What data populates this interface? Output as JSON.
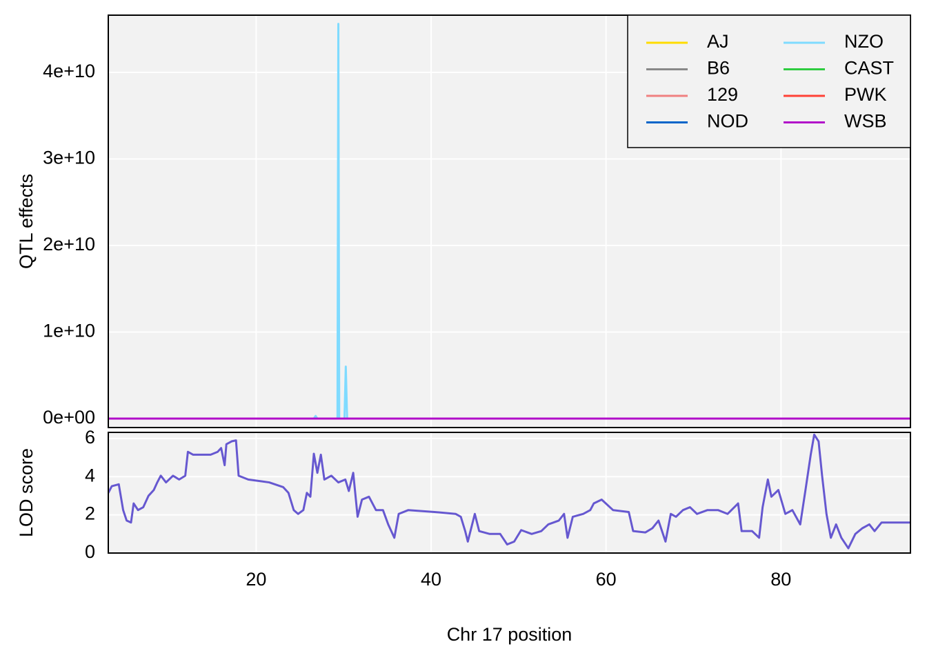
{
  "chart_data": [
    {
      "type": "line",
      "ylabel": "QTL effects",
      "x": [
        3.1,
        26.6,
        26.8,
        27.0,
        29.3,
        29.4,
        29.5,
        29.6,
        30.1,
        30.25,
        30.4,
        94.8
      ],
      "series": [
        {
          "name": "AJ",
          "color": "#FFDC00",
          "values": [
            0,
            0,
            0,
            0,
            0,
            0,
            0,
            0,
            0,
            0,
            0,
            0
          ]
        },
        {
          "name": "B6",
          "color": "#888888",
          "values": [
            0,
            0,
            0,
            0,
            0,
            0,
            0,
            0,
            0,
            0,
            0,
            0
          ]
        },
        {
          "name": "129",
          "color": "#F08080",
          "values": [
            0,
            0,
            0,
            0,
            0,
            0,
            0,
            0,
            0,
            0,
            0,
            0
          ]
        },
        {
          "name": "NOD",
          "color": "#0064C9",
          "values": [
            0,
            0,
            0,
            0,
            0,
            0,
            0,
            0,
            0,
            0,
            0,
            0
          ]
        },
        {
          "name": "NZO",
          "color": "#7FDBFF",
          "values": [
            0,
            0,
            300000000,
            0,
            0,
            45600000000,
            0,
            0,
            0,
            6000000000,
            0,
            0
          ]
        },
        {
          "name": "CAST",
          "color": "#2ECC40",
          "values": [
            0,
            0,
            0,
            0,
            0,
            0,
            0,
            0,
            0,
            0,
            0,
            0
          ]
        },
        {
          "name": "PWK",
          "color": "#FF4136",
          "values": [
            0,
            0,
            0,
            0,
            0,
            0,
            0,
            0,
            0,
            0,
            0,
            0
          ]
        },
        {
          "name": "WSB",
          "color": "#B10DC9",
          "values": [
            0,
            0,
            0,
            0,
            0,
            0,
            0,
            0,
            0,
            0,
            0,
            0
          ]
        }
      ],
      "xlim": [
        3.1,
        94.8
      ],
      "xticks": [
        20,
        40,
        60,
        80
      ],
      "ylim": [
        -1040000000,
        46610000000
      ],
      "yticks": [
        {
          "value": 0,
          "label": "0e+00"
        },
        {
          "value": 10000000000,
          "label": "1e+10"
        },
        {
          "value": 20000000000,
          "label": "2e+10"
        },
        {
          "value": 30000000000,
          "label": "3e+10"
        },
        {
          "value": 40000000000,
          "label": "4e+10"
        }
      ],
      "grid": true,
      "legend": "top-right",
      "legend_columns": 2
    },
    {
      "type": "line",
      "ylabel": "LOD score",
      "xlabel": "Chr 17 position",
      "x": [
        3.1,
        3.5,
        4.3,
        4.8,
        5.2,
        5.7,
        6.0,
        6.5,
        7.1,
        7.7,
        8.3,
        8.7,
        9.1,
        9.7,
        10.5,
        11.2,
        11.9,
        12.2,
        12.8,
        13.6,
        14.8,
        15.6,
        16.0,
        16.4,
        16.6,
        17.2,
        17.7,
        18.0,
        19.1,
        21.5,
        23.1,
        23.7,
        24.3,
        24.8,
        25.4,
        25.8,
        26.2,
        26.6,
        27.0,
        27.4,
        27.8,
        28.6,
        29.4,
        30.2,
        30.6,
        31.1,
        31.6,
        32.1,
        32.9,
        33.7,
        34.5,
        35.1,
        35.8,
        36.3,
        37.4,
        40.4,
        42.8,
        43.4,
        43.9,
        44.2,
        45.0,
        45.5,
        46.7,
        47.9,
        48.7,
        49.5,
        50.3,
        51.5,
        52.6,
        53.4,
        54.6,
        55.2,
        55.6,
        56.2,
        57.4,
        58.2,
        58.6,
        59.5,
        60.8,
        62.6,
        63.1,
        64.5,
        65.3,
        66.0,
        66.8,
        67.4,
        68.0,
        68.8,
        69.6,
        70.4,
        71.6,
        72.8,
        73.9,
        75.1,
        75.5,
        76.7,
        77.5,
        77.9,
        78.5,
        78.9,
        79.7,
        80.5,
        81.3,
        82.2,
        82.8,
        83.4,
        83.8,
        84.3,
        84.7,
        85.2,
        85.7,
        86.3,
        86.9,
        87.7,
        88.5,
        89.3,
        90.1,
        90.7,
        91.5,
        94.8
      ],
      "series": [
        {
          "color": "#6658D0",
          "values": [
            3.15,
            3.5,
            3.6,
            2.25,
            1.7,
            1.6,
            2.6,
            2.25,
            2.4,
            3.0,
            3.3,
            3.7,
            4.05,
            3.7,
            4.05,
            3.85,
            4.05,
            5.3,
            5.15,
            5.15,
            5.15,
            5.3,
            5.5,
            4.6,
            5.7,
            5.85,
            5.9,
            4.05,
            3.85,
            3.7,
            3.45,
            3.15,
            2.25,
            2.05,
            2.25,
            3.15,
            2.95,
            5.2,
            4.2,
            5.15,
            3.85,
            4.05,
            3.7,
            3.85,
            3.25,
            4.2,
            1.9,
            2.8,
            2.95,
            2.25,
            2.25,
            1.5,
            0.8,
            2.05,
            2.25,
            2.15,
            2.05,
            1.9,
            1.15,
            0.6,
            2.05,
            1.15,
            1.0,
            1.0,
            0.45,
            0.6,
            1.2,
            1.0,
            1.15,
            1.5,
            1.7,
            2.05,
            0.8,
            1.9,
            2.05,
            2.25,
            2.6,
            2.8,
            2.25,
            2.15,
            1.15,
            1.08,
            1.3,
            1.7,
            0.6,
            2.05,
            1.9,
            2.25,
            2.4,
            2.05,
            2.25,
            2.25,
            2.05,
            2.6,
            1.15,
            1.15,
            0.8,
            2.4,
            3.85,
            2.95,
            3.3,
            2.05,
            2.25,
            1.5,
            3.3,
            5.15,
            6.2,
            5.85,
            4.05,
            2.05,
            0.8,
            1.5,
            0.8,
            0.25,
            1.0,
            1.3,
            1.5,
            1.15,
            1.6,
            1.6
          ]
        }
      ],
      "xlim": [
        3.1,
        94.8
      ],
      "xticks": [
        20,
        40,
        60,
        80
      ],
      "ylim": [
        0,
        6.32
      ],
      "yticks": [
        0,
        2,
        4,
        6
      ],
      "grid": true
    }
  ]
}
